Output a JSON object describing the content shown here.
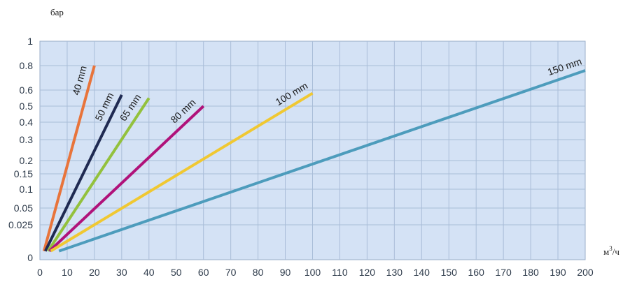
{
  "chart_data": {
    "type": "line",
    "title": "",
    "xlabel": "м³/ч",
    "ylabel": "бар",
    "xlabel_base": "м",
    "xlabel_sup": "3",
    "xlabel_tail": "/ч",
    "xlim": [
      0,
      200
    ],
    "grid": true,
    "background": "#d4e2f5",
    "x_ticks": [
      0,
      10,
      20,
      30,
      40,
      50,
      60,
      70,
      80,
      90,
      100,
      110,
      120,
      130,
      140,
      150,
      160,
      170,
      180,
      190,
      200
    ],
    "y_ticks": [
      "0",
      "0.025",
      "0.05",
      "0.1",
      "0.15",
      "0.2",
      "0.3",
      "0.4",
      "0.5",
      "0.6",
      "0.8",
      "1"
    ],
    "series": [
      {
        "name": "40 mm",
        "color": "#e8743b",
        "x": [
          1.5,
          20
        ],
        "y": [
          0.005,
          0.8
        ]
      },
      {
        "name": "50 mm",
        "color": "#1f2a52",
        "x": [
          2,
          30
        ],
        "y": [
          0.005,
          0.57
        ]
      },
      {
        "name": "65 mm",
        "color": "#93c13d",
        "x": [
          3,
          40
        ],
        "y": [
          0.005,
          0.55
        ]
      },
      {
        "name": "80 mm",
        "color": "#b0127a",
        "x": [
          3.5,
          60
        ],
        "y": [
          0.005,
          0.5
        ]
      },
      {
        "name": "100 mm",
        "color": "#f0c832",
        "x": [
          4,
          100
        ],
        "y": [
          0.005,
          0.58
        ]
      },
      {
        "name": "150 mm",
        "color": "#4d9cbc",
        "x": [
          7,
          200
        ],
        "y": [
          0.005,
          0.76
        ]
      }
    ]
  }
}
